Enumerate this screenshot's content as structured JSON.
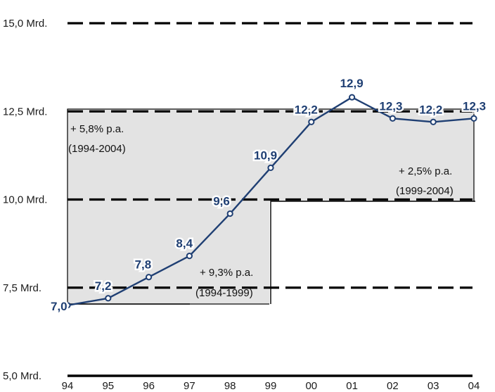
{
  "chart_data": {
    "type": "line",
    "x": [
      "94",
      "95",
      "96",
      "97",
      "98",
      "99",
      "00",
      "01",
      "02",
      "03",
      "04"
    ],
    "values": [
      7.0,
      7.2,
      7.8,
      8.4,
      9.6,
      10.9,
      12.2,
      12.9,
      12.3,
      12.2,
      12.3
    ],
    "data_labels": [
      "7,0",
      "7,2",
      "7,8",
      "8,4",
      "9,6",
      "10,9",
      "12,2",
      "12,9",
      "12,3",
      "12,2",
      "12,3"
    ],
    "y_ticks": [
      {
        "value": 5.0,
        "label": "5,0 Mrd."
      },
      {
        "value": 7.5,
        "label": "7,5 Mrd."
      },
      {
        "value": 10.0,
        "label": "10,0 Mrd."
      },
      {
        "value": 12.5,
        "label": "12,5 Mrd."
      },
      {
        "value": 15.0,
        "label": "15,0 Mrd."
      }
    ],
    "ylim": [
      5.0,
      15.0
    ],
    "grid": true,
    "legend": "none",
    "annotations": [
      {
        "lines": [
          "+ 5,8% p.a.",
          "(1994-2004)"
        ],
        "period": [
          "94",
          "04"
        ]
      },
      {
        "lines": [
          "+ 2,5% p.a.",
          "(1999-2004)"
        ],
        "period": [
          "99",
          "04"
        ]
      },
      {
        "lines": [
          "+ 9,3% p.a.",
          "(1994-1999)"
        ],
        "period": [
          "94",
          "99"
        ]
      }
    ],
    "colors": {
      "line": "#1f3f73",
      "shade": "#e3e3e3",
      "grid": "#000000"
    }
  }
}
